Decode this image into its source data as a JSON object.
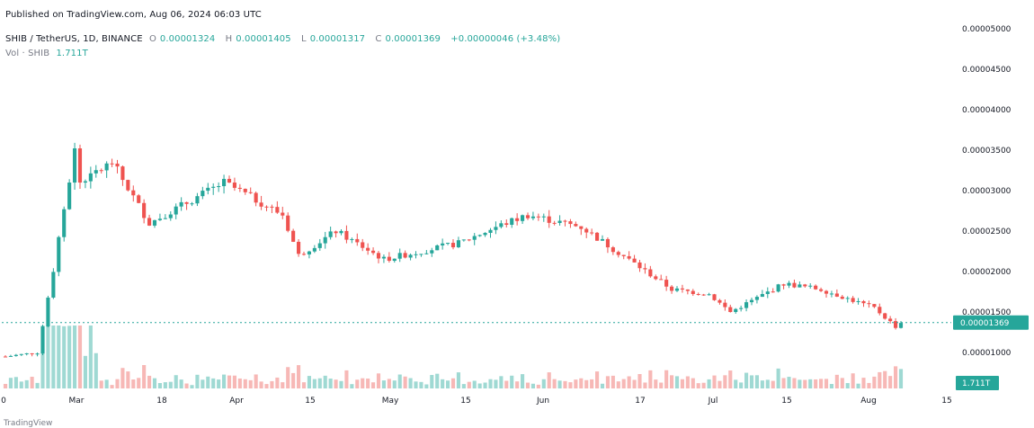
{
  "published": "Published on TradingView.com, Aug 06, 2024 06:03 UTC",
  "header": {
    "symbol": "SHIB / TetherUS, 1D, BINANCE",
    "o_label": "O",
    "o": "0.00001324",
    "h_label": "H",
    "h": "0.00001405",
    "l_label": "L",
    "l": "0.00001317",
    "c_label": "C",
    "c": "0.00001369",
    "change": "+0.00000046 (+3.48%)",
    "vol_label": "Vol · SHIB",
    "vol": "1.711T"
  },
  "footer": "TradingView",
  "colors": {
    "up": "#26a69a",
    "down": "#ef5350",
    "vol_up": "#9fd9d3",
    "vol_down": "#f7b8b6",
    "price_tag": "#26a69a",
    "price_line": "#26a69a"
  },
  "chart_data": {
    "type": "candlestick",
    "title": "SHIB / TetherUS, 1D, BINANCE",
    "ylim": [
      8.5e-06,
      5e-05
    ],
    "y_ticks": [
      "0.00001000",
      "0.00001500",
      "0.00002000",
      "0.00002500",
      "0.00003000",
      "0.00003500",
      "0.00004000",
      "0.00004500",
      "0.00005000"
    ],
    "x_ticks": [
      "0",
      "Mar",
      "18",
      "Apr",
      "15",
      "May",
      "15",
      "Jun",
      "17",
      "Jul",
      "15",
      "Aug",
      "15"
    ],
    "last_price": "0.00001369",
    "last_volume": "1.711T",
    "close_series_approx": [
      {
        "date": "Feb 20",
        "close": 9.5e-06
      },
      {
        "date": "Feb 26",
        "close": 1e-05
      },
      {
        "date": "Feb 28",
        "close": 1.65e-05
      },
      {
        "date": "Mar 4",
        "close": 3.5e-05
      },
      {
        "date": "Mar 5",
        "close": 3.1e-05
      },
      {
        "date": "Mar 11",
        "close": 3.35e-05
      },
      {
        "date": "Mar 18",
        "close": 2.6e-05
      },
      {
        "date": "Mar 25",
        "close": 2.85e-05
      },
      {
        "date": "Apr 1",
        "close": 3.1e-05
      },
      {
        "date": "Apr 8",
        "close": 2.85e-05
      },
      {
        "date": "Apr 12",
        "close": 2.7e-05
      },
      {
        "date": "Apr 15",
        "close": 2.2e-05
      },
      {
        "date": "Apr 22",
        "close": 2.5e-05
      },
      {
        "date": "May 1",
        "close": 2.15e-05
      },
      {
        "date": "May 15",
        "close": 2.35e-05
      },
      {
        "date": "May 22",
        "close": 2.55e-05
      },
      {
        "date": "May 28",
        "close": 2.7e-05
      },
      {
        "date": "Jun 7",
        "close": 2.55e-05
      },
      {
        "date": "Jun 17",
        "close": 2.1e-05
      },
      {
        "date": "Jun 24",
        "close": 1.78e-05
      },
      {
        "date": "Jul 1",
        "close": 1.72e-05
      },
      {
        "date": "Jul 5",
        "close": 1.5e-05
      },
      {
        "date": "Jul 15",
        "close": 1.85e-05
      },
      {
        "date": "Jul 22",
        "close": 1.78e-05
      },
      {
        "date": "Aug 1",
        "close": 1.55e-05
      },
      {
        "date": "Aug 5",
        "close": 1.32e-05
      },
      {
        "date": "Aug 6",
        "close": 1.369e-05
      }
    ]
  }
}
